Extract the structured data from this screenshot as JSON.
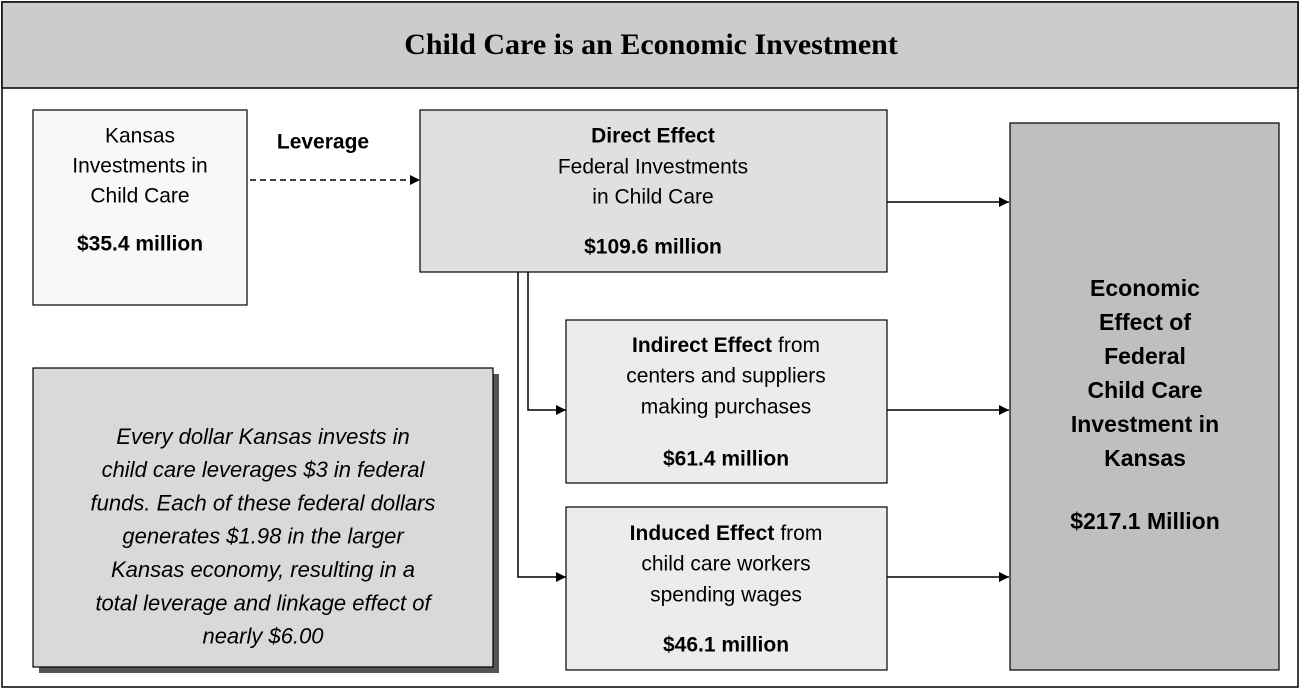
{
  "title": "Child Care is an Economic Investment",
  "leverage_label": "Leverage",
  "nodes": {
    "kansas": {
      "lines": [
        "Kansas",
        "Investments in",
        "Child Care"
      ],
      "amount": "$35.4 million"
    },
    "direct": {
      "heading": "Direct Effect",
      "lines": [
        "Federal Investments",
        "in Child Care"
      ],
      "amount": "$109.6 million"
    },
    "indirect": {
      "heading": "Indirect Effect",
      "heading_rest": "from",
      "lines": [
        "centers and suppliers",
        "making purchases"
      ],
      "amount": "$61.4 million"
    },
    "induced": {
      "heading": "Induced Effect",
      "heading_rest": "from",
      "lines": [
        "child care workers",
        "spending wages"
      ],
      "amount": "$46.1 million"
    },
    "total": {
      "lines": [
        "Economic",
        "Effect of",
        "Federal",
        "Child Care",
        "Investment in",
        "Kansas"
      ],
      "amount": "$217.1 Million"
    }
  },
  "note": {
    "lines": [
      "Every dollar Kansas invests in",
      "child care leverages $3 in federal",
      "funds. Each of these federal dollars",
      "generates $1.98 in the larger",
      "Kansas economy, resulting in a",
      "total leverage and linkage effect of",
      "nearly $6.00"
    ]
  }
}
